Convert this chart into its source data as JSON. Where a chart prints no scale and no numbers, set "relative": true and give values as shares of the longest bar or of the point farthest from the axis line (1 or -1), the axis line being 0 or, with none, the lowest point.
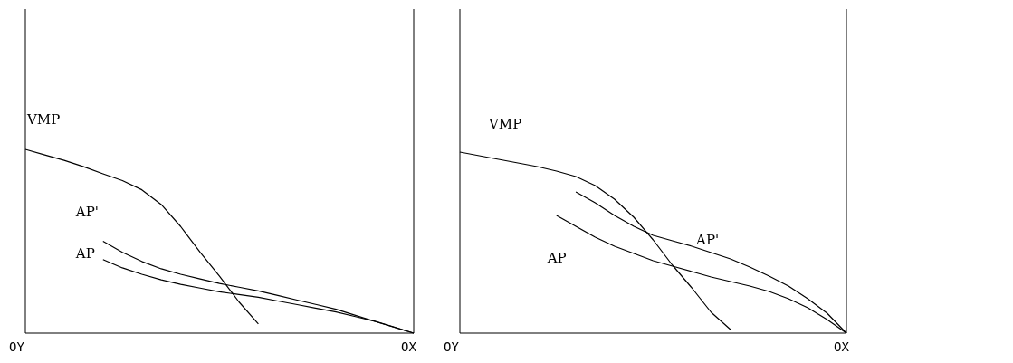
{
  "chart_data": [
    {
      "type": "line",
      "relative": true,
      "categories": [
        null,
        null,
        null,
        null,
        null,
        null,
        null,
        null,
        null,
        null,
        null,
        null,
        null,
        null,
        null,
        null,
        null,
        null,
        null,
        null,
        null
      ],
      "annotations": [
        "OY",
        "OX"
      ],
      "series": [
        {
          "name": "VMP",
          "color": "#000000",
          "values": [
            1.0,
            0.97,
            0.94,
            0.906,
            0.867,
            0.83,
            0.78,
            0.7,
            0.58,
            0.44,
            0.31,
            0.17,
            0.05,
            null,
            null,
            null,
            null,
            null,
            null,
            null,
            null
          ]
        },
        {
          "name": "AP'",
          "color": "#000000",
          "values": [
            null,
            null,
            null,
            null,
            0.5,
            0.44,
            0.39,
            0.35,
            0.32,
            0.295,
            0.27,
            0.25,
            0.23,
            0.205,
            0.18,
            0.155,
            0.13,
            0.097,
            0.064,
            0.032,
            0
          ]
        },
        {
          "name": "AP",
          "color": "#000000",
          "values": [
            null,
            null,
            null,
            null,
            0.4,
            0.355,
            0.32,
            0.29,
            0.265,
            0.245,
            0.225,
            0.21,
            0.195,
            0.175,
            0.155,
            0.135,
            0.115,
            0.09,
            0.065,
            0.033,
            0
          ]
        }
      ]
    },
    {
      "type": "line",
      "relative": true,
      "categories": [
        null,
        null,
        null,
        null,
        null,
        null,
        null,
        null,
        null,
        null,
        null,
        null,
        null,
        null,
        null,
        null,
        null,
        null,
        null,
        null,
        null
      ],
      "annotations": [
        "OY",
        "OX"
      ],
      "series": [
        {
          "name": "VMP",
          "color": "#000000",
          "values": [
            1.0,
            0.98,
            0.96,
            0.94,
            0.92,
            0.895,
            0.865,
            0.815,
            0.74,
            0.64,
            0.515,
            0.375,
            0.25,
            0.115,
            0.02,
            null,
            null,
            null,
            null,
            null,
            null
          ]
        },
        {
          "name": "AP'",
          "color": "#000000",
          "values": [
            null,
            null,
            null,
            null,
            null,
            null,
            0.78,
            0.72,
            0.65,
            0.59,
            0.54,
            0.51,
            0.48,
            0.445,
            0.41,
            0.365,
            0.315,
            0.26,
            0.19,
            0.11,
            0
          ]
        },
        {
          "name": "AP",
          "color": "#000000",
          "values": [
            null,
            null,
            null,
            null,
            null,
            0.65,
            0.59,
            0.53,
            0.48,
            0.44,
            0.4,
            0.37,
            0.34,
            0.31,
            0.285,
            0.26,
            0.23,
            0.19,
            0.14,
            0.075,
            0
          ]
        }
      ]
    }
  ]
}
